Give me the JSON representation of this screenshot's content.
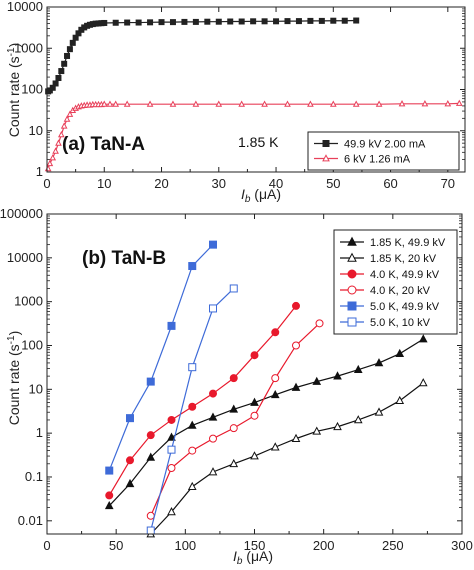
{
  "chart_data": [
    {
      "type": "scatter",
      "panel_label": "(a) TaN-A",
      "annotation": "1.85 K",
      "xlabel_main": "I",
      "xlabel_sub": "b",
      "xlabel_unit": " (μA)",
      "ylabel_main": "Count rate (s",
      "ylabel_sup": "-1",
      "ylabel_end": ")",
      "xlim": [
        0,
        73
      ],
      "ylim": [
        1,
        10000
      ],
      "yscale": "log",
      "xticks": [
        0,
        10,
        20,
        30,
        40,
        50,
        60,
        70
      ],
      "xtick_labels": [
        "0",
        "10",
        "20",
        "30",
        "40",
        "50",
        "60",
        "70"
      ],
      "yticks": [
        1,
        10,
        100,
        1000,
        10000
      ],
      "ytick_labels": [
        "1",
        "10",
        "100",
        "1000",
        "10000"
      ],
      "legend_position": "bottom-right",
      "series": [
        {
          "name": "49.9 kV 2.00 mA",
          "color": "#222222",
          "marker": "square-filled",
          "x": [
            0.2,
            0.5,
            1.0,
            1.5,
            2.0,
            2.5,
            3.0,
            3.5,
            4.0,
            4.5,
            5.0,
            5.5,
            6.0,
            6.5,
            7.0,
            7.5,
            8.0,
            8.5,
            9.0,
            9.5,
            10.0,
            12,
            14,
            16,
            18,
            20,
            22,
            24,
            26,
            28,
            30,
            32,
            34,
            36,
            38,
            40,
            42,
            44,
            46,
            48,
            50,
            52,
            54
          ],
          "y": [
            90,
            95,
            110,
            140,
            190,
            280,
            420,
            650,
            950,
            1350,
            1800,
            2300,
            2800,
            3200,
            3500,
            3700,
            3850,
            3950,
            4000,
            4050,
            4100,
            4150,
            4200,
            4200,
            4250,
            4300,
            4300,
            4350,
            4350,
            4400,
            4400,
            4450,
            4450,
            4500,
            4500,
            4500,
            4550,
            4550,
            4600,
            4600,
            4650,
            4650,
            4700
          ]
        },
        {
          "name": "6 kV 1.26 mA",
          "color": "#e8405a",
          "marker": "triangle-open",
          "x": [
            0.2,
            0.5,
            1.0,
            1.5,
            2.0,
            2.5,
            3.0,
            3.5,
            4.0,
            4.5,
            5.0,
            5.5,
            6.0,
            6.5,
            7.0,
            7.5,
            8.0,
            8.5,
            9.0,
            9.5,
            10.0,
            11.0,
            12.0,
            14,
            18,
            22,
            26,
            30,
            34,
            38,
            42,
            46,
            50,
            54,
            58,
            62,
            66,
            70,
            72
          ],
          "y": [
            1.2,
            1.6,
            2.2,
            3.2,
            5,
            8,
            13,
            19,
            25,
            31,
            35,
            38,
            40,
            41,
            42,
            42,
            43,
            43,
            43,
            43,
            44,
            44,
            44,
            44,
            44,
            44,
            44,
            44,
            44,
            44,
            44,
            44,
            44,
            44,
            44,
            45,
            45,
            45,
            46
          ]
        }
      ]
    },
    {
      "type": "line",
      "panel_label": "(b) TaN-B",
      "xlabel_main": "I",
      "xlabel_sub": "b",
      "xlabel_unit": " (μA)",
      "ylabel_main": "Count rate (s",
      "ylabel_sup": "-1",
      "ylabel_end": ")",
      "xlim": [
        0,
        300
      ],
      "ylim": [
        0.005,
        100000
      ],
      "yscale": "log",
      "xticks": [
        0,
        50,
        100,
        150,
        200,
        250,
        300
      ],
      "xtick_labels": [
        "0",
        "50",
        "100",
        "150",
        "200",
        "250",
        "300"
      ],
      "yticks": [
        0.01,
        0.1,
        1,
        10,
        100,
        1000,
        10000,
        100000
      ],
      "ytick_labels": [
        "0.01",
        "0.1",
        "1",
        "10",
        "100",
        "1000",
        "10000",
        "100000"
      ],
      "legend_position": "top-right",
      "series": [
        {
          "name": "1.85 K, 49.9 kV",
          "color": "#111111",
          "marker": "triangle-filled",
          "x": [
            45,
            60,
            75,
            90,
            105,
            120,
            135,
            150,
            165,
            180,
            195,
            210,
            225,
            240,
            255,
            272
          ],
          "y": [
            0.022,
            0.07,
            0.28,
            0.8,
            1.5,
            2.3,
            3.5,
            5,
            7.5,
            11,
            15,
            20,
            28,
            40,
            65,
            140
          ]
        },
        {
          "name": "1.85 K, 20 kV",
          "color": "#111111",
          "marker": "triangle-open",
          "x": [
            75,
            90,
            105,
            120,
            135,
            150,
            165,
            180,
            195,
            210,
            225,
            240,
            255,
            272
          ],
          "y": [
            0.005,
            0.016,
            0.06,
            0.13,
            0.2,
            0.3,
            0.48,
            0.75,
            1.1,
            1.4,
            2.0,
            3.0,
            5.5,
            14
          ]
        },
        {
          "name": "4.0 K, 49.9 kV",
          "color": "#e8192c",
          "marker": "circle-filled",
          "x": [
            45,
            60,
            75,
            90,
            105,
            120,
            135,
            150,
            165,
            180
          ],
          "y": [
            0.038,
            0.24,
            0.9,
            2,
            4,
            8,
            18,
            60,
            200,
            800
          ]
        },
        {
          "name": "4.0 K, 20 kV",
          "color": "#e8192c",
          "marker": "circle-open",
          "x": [
            75,
            90,
            105,
            120,
            135,
            150,
            165,
            180,
            197
          ],
          "y": [
            0.013,
            0.16,
            0.4,
            0.75,
            1.3,
            2.5,
            18,
            100,
            320
          ]
        },
        {
          "name": "5.0 K, 49.9 kV",
          "color": "#3e6bd8",
          "marker": "square-filled",
          "x": [
            45,
            60,
            75,
            90,
            105,
            120
          ],
          "y": [
            0.14,
            2.2,
            15,
            280,
            6500,
            20000
          ]
        },
        {
          "name": "5.0 K, 10 kV",
          "color": "#3e6bd8",
          "marker": "square-open",
          "x": [
            75,
            90,
            105,
            120,
            135
          ],
          "y": [
            0.006,
            0.42,
            32,
            700,
            2000
          ]
        }
      ]
    }
  ]
}
